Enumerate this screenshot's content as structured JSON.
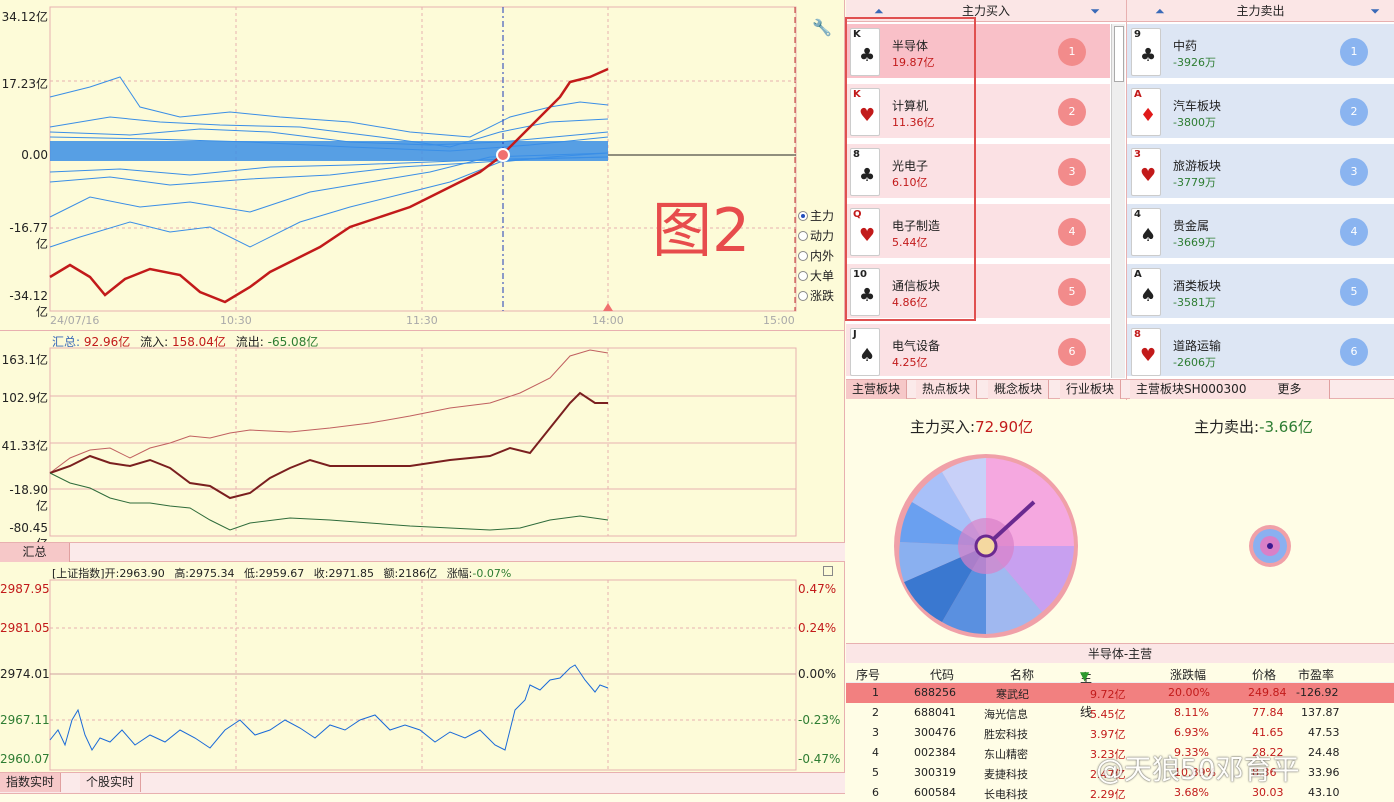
{
  "main_chart": {
    "y_ticks": [
      "34.12亿",
      "17.23亿",
      "0.00",
      "-16.77亿",
      "-34.12亿"
    ],
    "x_ticks": [
      "24/07/16",
      "10:30",
      "11:30",
      "14:00",
      "15:00"
    ],
    "annotation": "图2",
    "radio_options": [
      "主力",
      "动力",
      "内外",
      "大单",
      "涨跌"
    ]
  },
  "summary_chart": {
    "header_label": "汇总:",
    "header_total": "92.96亿",
    "inflow_label": "流入:",
    "inflow": "158.04亿",
    "outflow_label": "流出:",
    "outflow": "-65.08亿",
    "y_ticks": [
      "163.1亿",
      "102.9亿",
      "41.33亿",
      "-18.90亿",
      "-80.45亿"
    ],
    "tab": "汇总"
  },
  "index_chart": {
    "name": "[上证指数]",
    "open_label": "开:",
    "open": "2963.90",
    "high_label": "高:",
    "high": "2975.34",
    "low_label": "低:",
    "low": "2959.67",
    "close_label": "收:",
    "close": "2971.85",
    "amount_label": "额:",
    "amount": "2186亿",
    "change_label": "涨幅:",
    "change": "-0.07%",
    "y_ticks_left": [
      "2987.95",
      "2981.05",
      "2974.01",
      "2967.11",
      "2960.07"
    ],
    "y_ticks_right": [
      "0.47%",
      "0.24%",
      "0.00%",
      "-0.23%",
      "-0.47%"
    ],
    "tabs": [
      "指数实时",
      "个股实时"
    ]
  },
  "buy_panel": {
    "title": "主力买入",
    "items": [
      {
        "name": "半导体",
        "value": "19.87亿",
        "rank": "1",
        "card": "K",
        "suit": "♣"
      },
      {
        "name": "计算机",
        "value": "11.36亿",
        "rank": "2",
        "card": "K",
        "suit": "♥"
      },
      {
        "name": "光电子",
        "value": "6.10亿",
        "rank": "3",
        "card": "8",
        "suit": "♣"
      },
      {
        "name": "电子制造",
        "value": "5.44亿",
        "rank": "4",
        "card": "Q",
        "suit": "♥"
      },
      {
        "name": "通信板块",
        "value": "4.86亿",
        "rank": "5",
        "card": "10",
        "suit": "♣"
      },
      {
        "name": "电气设备",
        "value": "4.25亿",
        "rank": "6",
        "card": "J",
        "suit": "♠"
      }
    ]
  },
  "sell_panel": {
    "title": "主力卖出",
    "items": [
      {
        "name": "中药",
        "value": "-3926万",
        "rank": "1",
        "card": "9",
        "suit": "♣"
      },
      {
        "name": "汽车板块",
        "value": "-3800万",
        "rank": "2",
        "card": "A",
        "suit": "♦"
      },
      {
        "name": "旅游板块",
        "value": "-3779万",
        "rank": "3",
        "card": "3",
        "suit": "♥"
      },
      {
        "name": "贵金属",
        "value": "-3669万",
        "rank": "4",
        "card": "4",
        "suit": "♠"
      },
      {
        "name": "酒类板块",
        "value": "-3581万",
        "rank": "5",
        "card": "A",
        "suit": "♠"
      },
      {
        "name": "道路运输",
        "value": "-2606万",
        "rank": "6",
        "card": "8",
        "suit": "♥"
      }
    ]
  },
  "sector_tabs": [
    "主营板块",
    "热点板块",
    "概念板块",
    "行业板块",
    "主营板块SH000300",
    "更多"
  ],
  "pie": {
    "buy_label": "主力买入:",
    "buy_value": "72.90亿",
    "sell_label": "主力卖出:",
    "sell_value": "-3.66亿"
  },
  "stock_table": {
    "title": "半导体-主营",
    "headers": [
      "序号",
      "代码",
      "名称",
      "主力线",
      "涨跌幅",
      "价格",
      "市盈率"
    ],
    "rows": [
      [
        "1",
        "688256",
        "寒武纪",
        "9.72亿",
        "20.00%",
        "249.84",
        "-126.92"
      ],
      [
        "2",
        "688041",
        "海光信息",
        "5.45亿",
        "8.11%",
        "77.84",
        "137.87"
      ],
      [
        "3",
        "300476",
        "胜宏科技",
        "3.97亿",
        "6.93%",
        "41.65",
        "47.53"
      ],
      [
        "4",
        "002384",
        "东山精密",
        "3.23亿",
        "9.33%",
        "28.22",
        "24.48"
      ],
      [
        "5",
        "300319",
        "麦捷科技",
        "2.47亿",
        "10.89%",
        "8.36",
        "33.96"
      ],
      [
        "6",
        "600584",
        "长电科技",
        "2.29亿",
        "3.68%",
        "30.03",
        "43.10"
      ]
    ]
  },
  "watermark": "@天狼50邓育平",
  "colors": {
    "up": "#c0392b",
    "down": "#2e7d32",
    "blue": "#3a8ee6",
    "badge_buy": "#f28b8b",
    "badge_sell": "#8ab4f0"
  }
}
